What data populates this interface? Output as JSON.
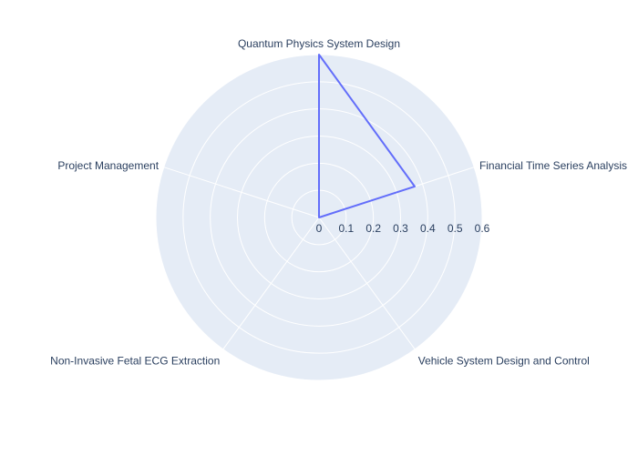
{
  "chart_data": {
    "type": "radar",
    "categories": [
      "Quantum Physics System Design",
      "Financial Time Series Analysis",
      "Vehicle System Design and Control",
      "Non-Invasive Fetal ECG Extraction",
      "Project Management"
    ],
    "series": [
      {
        "values": [
          0.6,
          0.37,
          0,
          0,
          0
        ],
        "color": "#636efa"
      }
    ],
    "radial_range": [
      0,
      0.6
    ],
    "radial_ticks": [
      "0",
      "0.1",
      "0.2",
      "0.3",
      "0.4",
      "0.5",
      "0.6"
    ],
    "polar_background": "#e5ecf6",
    "grid_color": "#ffffff",
    "legend": "none",
    "grid": true
  }
}
